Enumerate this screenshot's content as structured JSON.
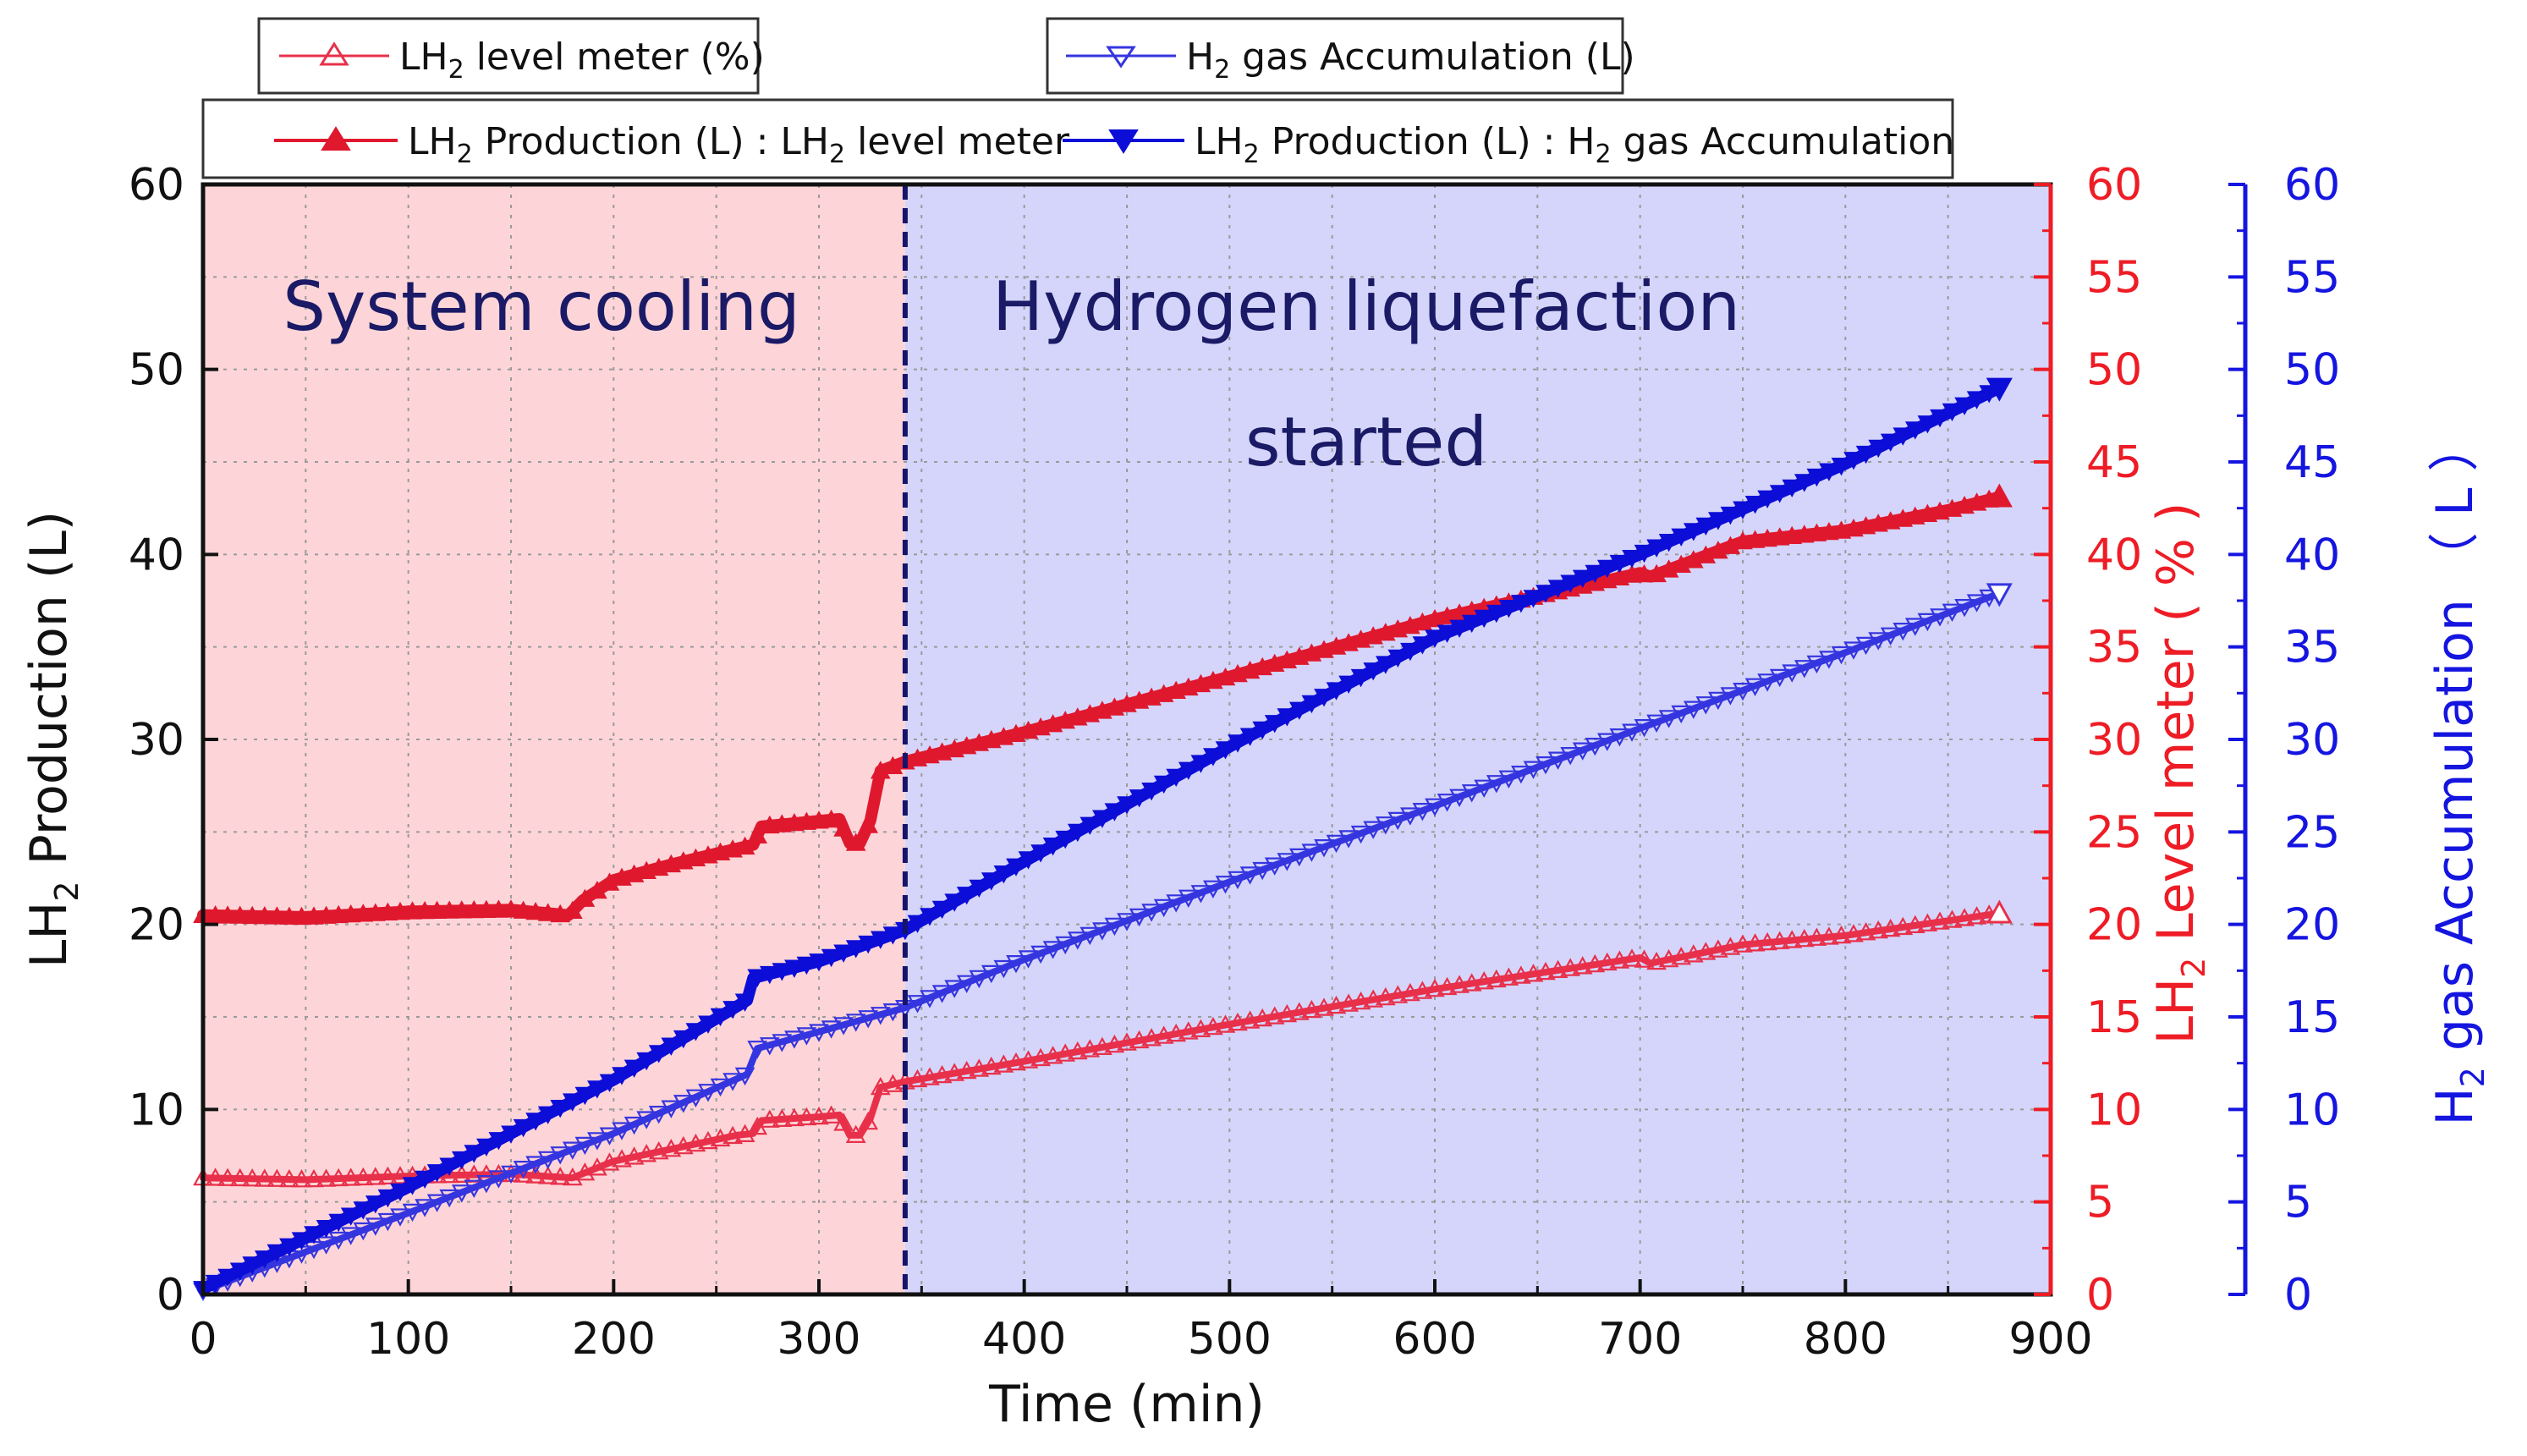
{
  "chart_data": {
    "type": "line",
    "x_axis": {
      "label": "Time (min)",
      "range": [
        0,
        900
      ],
      "ticks": [
        0,
        100,
        200,
        300,
        400,
        500,
        600,
        700,
        800,
        900
      ]
    },
    "y_axis_left": {
      "label_main": "LH",
      "label_sub": "2",
      "label_rest": " Production (L)",
      "range": [
        0,
        60
      ],
      "ticks": [
        0,
        10,
        20,
        30,
        40,
        50,
        60
      ]
    },
    "y_axis_right_1": {
      "label_main": "LH",
      "label_sub": "2",
      "label_rest": " Level meter ( % )",
      "range": [
        0,
        60
      ],
      "ticks": [
        0,
        5,
        10,
        15,
        20,
        25,
        30,
        35,
        40,
        45,
        50,
        55,
        60
      ],
      "color": "#ee1c25"
    },
    "y_axis_right_2": {
      "label_main": "H",
      "label_sub": "2",
      "label_rest": " gas Accumulation （ L ）",
      "range": [
        0,
        60
      ],
      "ticks": [
        0,
        5,
        10,
        15,
        20,
        25,
        30,
        35,
        40,
        45,
        50,
        55,
        60
      ],
      "color": "#1515e0"
    },
    "regions": [
      {
        "label_lines": [
          "System cooling"
        ],
        "x_range": [
          0,
          342
        ],
        "color": "#fdd5d8"
      },
      {
        "label_lines": [
          "Hydrogen liquefaction",
          "started"
        ],
        "x_range": [
          342,
          900
        ],
        "color": "#d5d5fb"
      }
    ],
    "divider_x": 342,
    "legend": [
      {
        "key": "level_pct",
        "text_main": "LH",
        "text_sub": "2",
        "text_rest": " level meter (%)"
      },
      {
        "key": "accum",
        "text_main": "H",
        "text_sub": "2",
        "text_rest": " gas Accumulation (L)"
      },
      {
        "key": "prod_level",
        "text_main": "LH",
        "text_sub": "2",
        "text_rest": " Production (L) : LH",
        "text_sub2": "2",
        "text_rest2": " level meter"
      },
      {
        "key": "prod_accum",
        "text_main": "LH",
        "text_sub": "2",
        "text_rest": " Production (L) : H",
        "text_sub2": "2",
        "text_rest2": " gas Accumulation"
      }
    ],
    "series": [
      {
        "key": "level_pct",
        "name": "LH2 level meter (%)",
        "axis": "right_1",
        "color": "#e8304a",
        "marker": "triangle-up-open",
        "x": [
          0,
          50,
          100,
          150,
          180,
          200,
          230,
          260,
          268,
          272,
          300,
          310,
          315,
          320,
          325,
          330,
          342,
          400,
          500,
          600,
          700,
          705,
          750,
          800,
          850,
          875
        ],
        "y": [
          6.3,
          6.2,
          6.4,
          6.5,
          6.3,
          7.2,
          7.9,
          8.6,
          8.7,
          9.4,
          9.6,
          9.7,
          8.6,
          8.6,
          9.5,
          11.2,
          11.5,
          12.6,
          14.6,
          16.5,
          18.2,
          17.9,
          18.9,
          19.4,
          20.2,
          20.6
        ]
      },
      {
        "key": "accum",
        "name": "H2 gas Accumulation (L)",
        "axis": "right_2",
        "color": "#3535e0",
        "marker": "triangle-down-open",
        "x": [
          0,
          100,
          200,
          265,
          270,
          300,
          342,
          400,
          500,
          600,
          700,
          800,
          875
        ],
        "y": [
          0.2,
          4.4,
          8.7,
          11.9,
          13.3,
          14.2,
          15.5,
          18.1,
          22.3,
          26.4,
          30.6,
          34.7,
          37.9
        ]
      },
      {
        "key": "prod_level",
        "name": "LH2 Production (L) : LH2 level meter",
        "axis": "left",
        "color": "#e0182e",
        "marker": "triangle-up-filled",
        "x": [
          0,
          50,
          100,
          150,
          178,
          185,
          200,
          230,
          260,
          268,
          272,
          300,
          310,
          315,
          320,
          325,
          330,
          342,
          400,
          500,
          600,
          700,
          705,
          750,
          800,
          850,
          875
        ],
        "y": [
          20.5,
          20.4,
          20.7,
          20.8,
          20.5,
          21.3,
          22.4,
          23.3,
          24.1,
          24.3,
          25.3,
          25.6,
          25.7,
          24.4,
          24.4,
          25.6,
          28.3,
          28.8,
          30.4,
          33.4,
          36.5,
          39.0,
          38.8,
          40.7,
          41.3,
          42.4,
          43.1
        ]
      },
      {
        "key": "prod_accum",
        "name": "LH2 Production (L) : H2 gas Accumulation",
        "axis": "left",
        "color": "#0d0dd8",
        "marker": "triangle-down-filled",
        "x": [
          0,
          100,
          200,
          265,
          268,
          300,
          342,
          400,
          500,
          600,
          700,
          800,
          875
        ],
        "y": [
          0.3,
          5.8,
          11.6,
          15.9,
          17.1,
          18.0,
          19.7,
          23.4,
          29.6,
          35.5,
          40.0,
          44.9,
          49.0
        ]
      }
    ]
  }
}
